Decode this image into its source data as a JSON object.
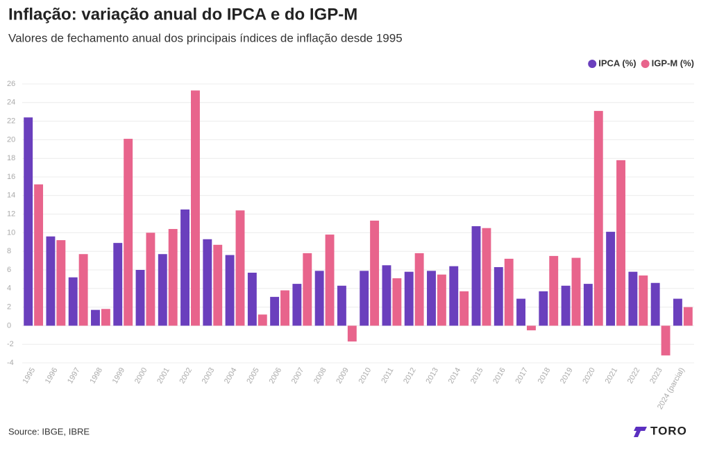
{
  "chart_data": {
    "type": "bar",
    "title": "Inflação: variação anual do IPCA e do IGP-M",
    "subtitle": "Valores de fechamento anual dos principais índices de inflação desde 1995",
    "source": "Source: IBGE, IBRE",
    "brand": "TORO",
    "categories": [
      "1995",
      "1996",
      "1997",
      "1998",
      "1999",
      "2000",
      "2001",
      "2002",
      "2003",
      "2004",
      "2005",
      "2006",
      "2007",
      "2008",
      "2009",
      "2010",
      "2011",
      "2012",
      "2013",
      "2014",
      "2015",
      "2016",
      "2017",
      "2018",
      "2019",
      "2020",
      "2021",
      "2022",
      "2023",
      "2024 (parcial)"
    ],
    "series": [
      {
        "name": "IPCA (%)",
        "color": "#6a3fbd",
        "values": [
          22.4,
          9.6,
          5.2,
          1.7,
          8.9,
          6.0,
          7.7,
          12.5,
          9.3,
          7.6,
          5.7,
          3.1,
          4.5,
          5.9,
          4.3,
          5.9,
          6.5,
          5.8,
          5.9,
          6.4,
          10.7,
          6.3,
          2.9,
          3.7,
          4.3,
          4.5,
          10.1,
          5.8,
          4.6,
          2.9
        ]
      },
      {
        "name": "IGP-M (%)",
        "color": "#e8648c",
        "values": [
          15.2,
          9.2,
          7.7,
          1.8,
          20.1,
          10.0,
          10.4,
          25.3,
          8.7,
          12.4,
          1.2,
          3.8,
          7.8,
          9.8,
          -1.7,
          11.3,
          5.1,
          7.8,
          5.5,
          3.7,
          10.5,
          7.2,
          -0.5,
          7.5,
          7.3,
          23.1,
          17.8,
          5.4,
          -3.2,
          2.0
        ]
      }
    ],
    "ylim": [
      -4,
      26
    ],
    "yticks": [
      -4,
      -2,
      0,
      2,
      4,
      6,
      8,
      10,
      12,
      14,
      16,
      18,
      20,
      22,
      24,
      26
    ],
    "grid": true,
    "legend": "top-right"
  }
}
